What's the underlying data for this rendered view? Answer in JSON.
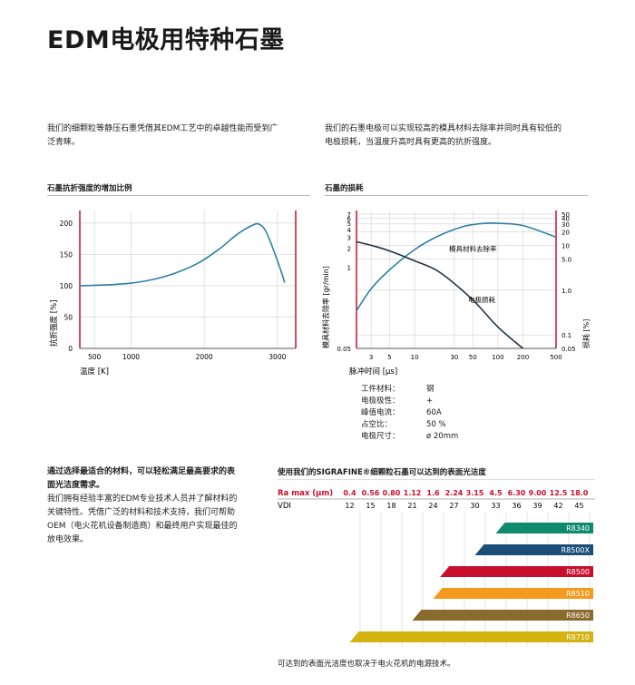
{
  "title": "EDM电极用特种石墨",
  "intro": {
    "left": [
      "我们的细颗粒等静压石墨凭借其EDM工艺中的卓越性能而受到广",
      "泛青睐。"
    ],
    "right": [
      "我们的石墨电极可以实现较高的模具材料去除率并同时具有较低的",
      "电极损耗，当温度升高时具有更高的抗折强度。"
    ]
  },
  "chart_data": [
    {
      "type": "line",
      "title": "石墨抗折强度的增加比例",
      "xlabel": "温度 [K]",
      "ylabel": "抗折强度 [%]",
      "xlim": [
        300,
        3250
      ],
      "ylim": [
        0,
        220
      ],
      "x_ticks": [
        "500",
        "1000",
        "2000",
        "3000"
      ],
      "y_ticks": [
        "0",
        "50",
        "100",
        "150",
        "200"
      ],
      "series": [
        {
          "x": [
            300,
            600,
            1000,
            1300,
            1600,
            1900,
            2200,
            2450,
            2650,
            2750,
            2850,
            3000,
            3100
          ],
          "y": [
            100,
            101,
            104,
            110,
            120,
            135,
            158,
            182,
            196,
            198,
            185,
            140,
            105
          ]
        }
      ]
    },
    {
      "type": "line",
      "title": "石墨的损耗",
      "xlabel": "脉冲时间 [µs]",
      "ylabel_left": "模具材料去除率 [gr/min]",
      "ylabel_right": "损耗 [%]",
      "log_scale": true,
      "x_ticks": [
        "3",
        "5",
        "10",
        "30",
        "50",
        "100",
        "200",
        "500"
      ],
      "y_left_ticks": [
        "0.05",
        "1",
        "2",
        "3",
        "4",
        "5",
        "6",
        "7"
      ],
      "y_right_ticks": [
        "0.05",
        "0.1",
        "1.0",
        "5.0",
        "10",
        "20",
        "30",
        "40",
        "50"
      ],
      "series": [
        {
          "name": "模具材料去除率",
          "axis": "left",
          "x": [
            2,
            3,
            5,
            10,
            20,
            40,
            70,
            100,
            200,
            500
          ],
          "y": [
            0.2,
            0.45,
            0.9,
            1.9,
            3.2,
            4.5,
            5.0,
            5.0,
            4.6,
            3.0
          ]
        },
        {
          "name": "电极损耗",
          "axis": "right",
          "x": [
            2,
            3,
            5,
            10,
            20,
            50,
            100,
            200
          ],
          "y": [
            12,
            10,
            7.5,
            4.5,
            2.5,
            0.6,
            0.15,
            0.05
          ]
        }
      ]
    }
  ],
  "specs": [
    {
      "label": "工件材料：",
      "value": "钢"
    },
    {
      "label": "电极极性：",
      "value": "+"
    },
    {
      "label": "峰值电流：",
      "value": "60A"
    },
    {
      "label": "占空比：",
      "value": "50 %"
    },
    {
      "label": "电极尺寸：",
      "value": "ø 20mm"
    }
  ],
  "bottom_left": {
    "heading": [
      "通过选择最适合的材料，可以轻松满足最高要求的表",
      "面光洁度需求。"
    ],
    "body": [
      "我们拥有经验丰富的EDM专业技术人员并了解材料的",
      "关键特性。凭借广泛的材料和技术支持，我们可帮助",
      "OEM（电火花机设备制造商）和最终用户实现最佳的",
      "放电效果。"
    ]
  },
  "finish_table": {
    "title": "使用我们的SIGRAFINE®细颗粒石墨可以达到的表面光洁度",
    "ra_label": "Ra max (µm)",
    "vdi_label": "VDI",
    "ra_values": [
      "0.4",
      "0.56",
      "0.80",
      "1.12",
      "1.6",
      "2.24",
      "3.15",
      "4.5",
      "6.30",
      "9.00",
      "12.5",
      "18.0"
    ],
    "vdi_values": [
      "12",
      "15",
      "18",
      "21",
      "24",
      "27",
      "30",
      "33",
      "36",
      "39",
      "42",
      "45"
    ],
    "grades": [
      {
        "name": "R8340",
        "start_vdi": 33,
        "color": "#0f8a6d"
      },
      {
        "name": "R8500X",
        "start_vdi": 30,
        "color": "#1b4f7a"
      },
      {
        "name": "R8500",
        "start_vdi": 25,
        "color": "#c8102e"
      },
      {
        "name": "R8510",
        "start_vdi": 24,
        "color": "#f39a1f"
      },
      {
        "name": "R8650",
        "start_vdi": 21,
        "color": "#8a6a2d"
      },
      {
        "name": "R8710",
        "start_vdi": 12,
        "color": "#d4b20f"
      }
    ],
    "footnote": "可达到的表面光洁度也取决于电火花机的电源技术。"
  },
  "colors": {
    "accent": "#c8102e",
    "curve": "#2e7fa8",
    "dark": "#1f3244"
  }
}
